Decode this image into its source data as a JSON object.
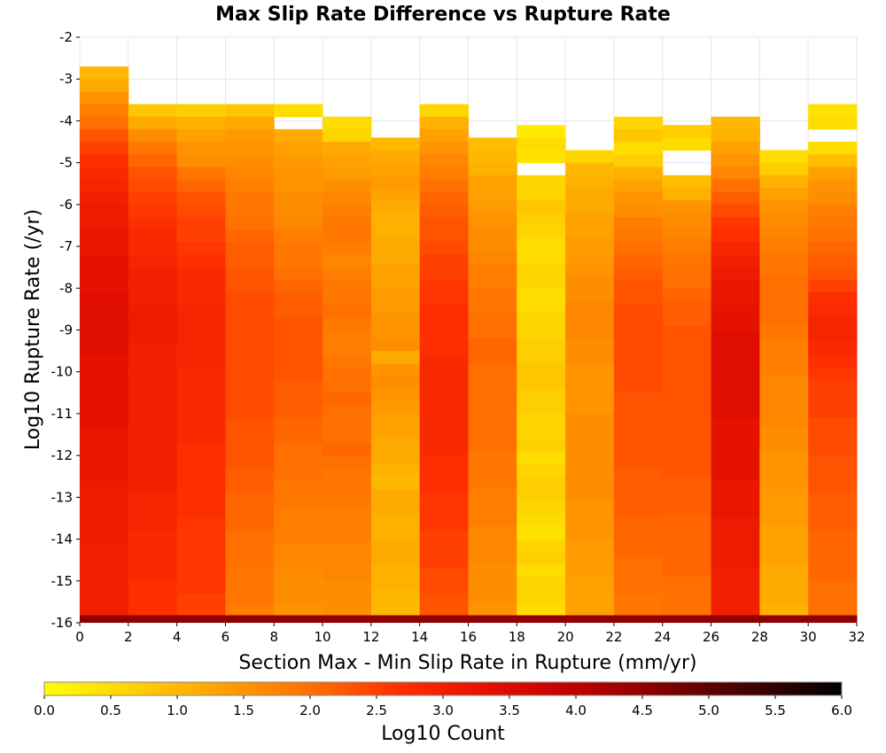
{
  "chart_data": {
    "type": "heatmap",
    "title": "Max Slip Rate Difference vs Rupture Rate",
    "xlabel": "Section Max - Min Slip Rate in Rupture (mm/yr)",
    "ylabel": "Log10 Rupture Rate (/yr)",
    "xlim": [
      0,
      32
    ],
    "ylim": [
      -16,
      -2
    ],
    "x_ticks": [
      "0",
      "2",
      "4",
      "6",
      "8",
      "10",
      "12",
      "14",
      "16",
      "18",
      "20",
      "22",
      "24",
      "26",
      "28",
      "30",
      "32"
    ],
    "y_ticks": [
      "-2",
      "-3",
      "-4",
      "-5",
      "-6",
      "-7",
      "-8",
      "-9",
      "-10",
      "-11",
      "-12",
      "-13",
      "-14",
      "-15",
      "-16"
    ],
    "colorbar": {
      "label": "Log10 Count",
      "range": [
        0,
        6
      ],
      "ticks": [
        "0.0",
        "0.5",
        "1.0",
        "1.5",
        "2.0",
        "2.5",
        "3.0",
        "3.5",
        "4.0",
        "4.5",
        "5.0",
        "5.5",
        "6.0"
      ],
      "colors": [
        "#ffff00",
        "#ffd000",
        "#ffa000",
        "#ff7000",
        "#ff3000",
        "#e41000",
        "#c00000",
        "#800000",
        "#400000",
        "#000000"
      ]
    },
    "x_bin_width": 2,
    "y_bin_height": 0.3,
    "grid": true,
    "note_cells": "values are log10 counts per cell; columns list value pairs from the top of each column [y_top, values...]",
    "columns": [
      {
        "x": 1,
        "y_top": -2.7,
        "bottom_value": 4.5,
        "values": [
          1.0,
          1.2,
          1.5,
          1.8,
          2.0,
          2.3,
          2.5,
          2.7,
          2.8,
          2.9,
          3.0,
          3.1,
          3.1,
          3.2,
          3.2,
          3.3,
          3.3,
          3.3,
          3.4,
          3.4,
          3.4,
          3.4,
          3.4,
          3.3,
          3.3,
          3.3,
          3.3,
          3.3,
          3.3,
          3.2,
          3.2,
          3.2,
          3.2,
          3.1,
          3.1,
          3.1,
          3.1,
          3.1,
          3.0,
          3.0,
          3.0,
          3.0,
          3.0,
          3.0,
          3.0,
          2.9
        ]
      },
      {
        "x": 3,
        "y_top": -3.6,
        "bottom_value": 4.5,
        "values": [
          0.8,
          1.2,
          1.6,
          1.9,
          2.1,
          2.3,
          2.4,
          2.5,
          2.6,
          2.7,
          2.8,
          2.8,
          2.9,
          3.0,
          3.0,
          3.0,
          3.1,
          3.1,
          3.1,
          3.0,
          3.0,
          3.0,
          3.0,
          3.0,
          3.0,
          3.0,
          3.0,
          3.0,
          3.0,
          3.0,
          3.0,
          2.9,
          2.9,
          2.9,
          2.8,
          2.8,
          2.8,
          2.8,
          2.7,
          2.7,
          2.7,
          2.6
        ]
      },
      {
        "x": 5,
        "y_top": -3.6,
        "bottom_value": 4.5,
        "values": [
          0.7,
          1.1,
          1.3,
          1.5,
          1.6,
          1.9,
          2.1,
          2.3,
          2.4,
          2.5,
          2.5,
          2.6,
          2.7,
          2.8,
          2.8,
          2.8,
          2.9,
          2.9,
          2.9,
          2.9,
          2.9,
          2.8,
          2.8,
          2.8,
          2.8,
          2.8,
          2.8,
          2.7,
          2.7,
          2.7,
          2.7,
          2.7,
          2.7,
          2.6,
          2.6,
          2.6,
          2.6,
          2.6,
          2.6,
          2.5,
          2.5,
          2.5
        ]
      },
      {
        "x": 7,
        "y_top": -3.6,
        "bottom_value": 4.5,
        "values": [
          0.8,
          1.2,
          1.4,
          1.5,
          1.6,
          1.7,
          1.8,
          1.9,
          1.9,
          2.0,
          2.1,
          2.2,
          2.2,
          2.3,
          2.3,
          2.4,
          2.4,
          2.4,
          2.4,
          2.4,
          2.4,
          2.4,
          2.4,
          2.4,
          2.4,
          2.3,
          2.3,
          2.3,
          2.3,
          2.2,
          2.2,
          2.1,
          2.1,
          2.1,
          2.0,
          2.0,
          2.0,
          1.9,
          1.9,
          1.9,
          1.8,
          1.8
        ]
      },
      {
        "x": 9,
        "y_top": -3.6,
        "bottom_value": 4.5,
        "values": [
          0.5,
          null,
          1.2,
          1.3,
          1.4,
          1.5,
          1.5,
          1.6,
          1.6,
          1.7,
          1.8,
          1.9,
          1.9,
          2.0,
          2.1,
          2.2,
          2.2,
          2.3,
          2.3,
          2.3,
          2.3,
          2.3,
          2.2,
          2.2,
          2.2,
          2.1,
          2.1,
          2.0,
          2.0,
          2.0,
          1.9,
          1.9,
          1.8,
          1.8,
          1.8,
          1.7,
          1.7,
          1.6,
          1.6,
          1.6,
          1.5,
          1.5
        ]
      },
      {
        "x": 11,
        "y_top": -3.9,
        "bottom_value": 4.5,
        "values": [
          0.5,
          0.6,
          1.2,
          1.3,
          1.4,
          1.6,
          1.7,
          1.8,
          1.9,
          1.9,
          1.8,
          1.7,
          1.8,
          1.9,
          1.9,
          2.0,
          1.9,
          1.8,
          1.8,
          1.9,
          2.0,
          2.0,
          2.1,
          2.0,
          2.0,
          2.0,
          2.1,
          2.0,
          1.9,
          1.9,
          1.9,
          1.8,
          1.8,
          1.8,
          1.7,
          1.7,
          1.7,
          1.6,
          1.6,
          1.6,
          1.5
        ]
      },
      {
        "x": 13,
        "y_top": -4.4,
        "bottom_value": 4.5,
        "values": [
          1.0,
          1.2,
          1.3,
          1.4,
          1.3,
          1.2,
          1.1,
          1.1,
          1.2,
          1.2,
          1.3,
          1.3,
          1.4,
          1.4,
          1.5,
          1.5,
          1.6,
          1.2,
          1.5,
          1.6,
          1.5,
          1.4,
          1.3,
          1.3,
          1.2,
          1.2,
          1.1,
          1.0,
          1.2,
          1.2,
          1.1,
          1.1,
          1.2,
          1.2,
          1.1,
          1.1,
          1.0,
          1.0,
          0.9,
          1.0
        ]
      },
      {
        "x": 15,
        "y_top": -3.6,
        "bottom_value": 4.5,
        "values": [
          0.6,
          1.1,
          1.3,
          1.5,
          1.7,
          1.8,
          2.0,
          2.1,
          2.2,
          2.3,
          2.3,
          2.4,
          2.5,
          2.5,
          2.6,
          2.6,
          2.7,
          2.7,
          2.7,
          2.7,
          2.8,
          2.8,
          2.8,
          2.8,
          2.8,
          2.8,
          2.8,
          2.8,
          2.7,
          2.7,
          2.7,
          2.6,
          2.6,
          2.6,
          2.5,
          2.5,
          2.5,
          2.4,
          2.4,
          2.3,
          2.3,
          2.2
        ]
      },
      {
        "x": 17,
        "y_top": -4.4,
        "bottom_value": 4.5,
        "values": [
          0.9,
          1.0,
          1.1,
          1.3,
          1.3,
          1.4,
          1.5,
          1.6,
          1.6,
          1.7,
          1.8,
          1.8,
          1.9,
          1.9,
          2.0,
          2.0,
          2.1,
          2.1,
          2.0,
          2.0,
          2.0,
          2.0,
          2.0,
          2.0,
          2.0,
          1.9,
          1.9,
          1.9,
          1.8,
          1.8,
          1.8,
          1.7,
          1.7,
          1.7,
          1.6,
          1.6,
          1.6,
          1.5,
          1.5,
          1.2
        ]
      },
      {
        "x": 19,
        "y_top": -4.1,
        "bottom_value": 4.5,
        "values": [
          0.3,
          0.5,
          0.4,
          null,
          0.6,
          0.6,
          0.8,
          0.7,
          0.6,
          0.5,
          0.5,
          0.6,
          0.6,
          0.5,
          0.5,
          0.6,
          0.6,
          0.7,
          0.7,
          0.8,
          0.8,
          0.7,
          0.7,
          0.6,
          0.6,
          0.7,
          0.5,
          0.6,
          0.7,
          0.7,
          0.6,
          0.5,
          0.4,
          0.6,
          0.7,
          0.5,
          0.6,
          0.6,
          0.5,
          0.4,
          0.5
        ]
      },
      {
        "x": 21,
        "y_top": -4.7,
        "bottom_value": 4.5,
        "values": [
          0.6,
          1.0,
          1.1,
          1.2,
          1.2,
          1.3,
          1.3,
          1.4,
          1.4,
          1.5,
          1.6,
          1.6,
          1.7,
          1.7,
          1.7,
          1.6,
          1.6,
          1.5,
          1.5,
          1.5,
          1.5,
          1.6,
          1.6,
          1.6,
          1.6,
          1.6,
          1.6,
          1.6,
          1.5,
          1.5,
          1.5,
          1.4,
          1.4,
          1.4,
          1.3,
          1.3,
          1.3,
          1.2,
          1.1
        ]
      },
      {
        "x": 23,
        "y_top": -3.9,
        "bottom_value": 4.5,
        "values": [
          0.6,
          0.8,
          0.5,
          0.7,
          1.1,
          1.3,
          1.5,
          1.6,
          1.8,
          1.9,
          2.0,
          2.1,
          2.2,
          2.3,
          2.3,
          2.4,
          2.4,
          2.4,
          2.4,
          2.4,
          2.4,
          2.4,
          2.3,
          2.3,
          2.3,
          2.3,
          2.3,
          2.3,
          2.2,
          2.2,
          2.2,
          2.2,
          2.1,
          2.1,
          2.1,
          2.0,
          2.0,
          2.0,
          1.9,
          1.9,
          1.9
        ]
      },
      {
        "x": 25,
        "y_top": -4.1,
        "bottom_value": 4.5,
        "values": [
          0.7,
          0.5,
          null,
          null,
          0.9,
          1.1,
          1.5,
          1.6,
          1.7,
          1.8,
          1.9,
          2.0,
          2.0,
          2.1,
          2.2,
          2.2,
          2.3,
          2.3,
          2.3,
          2.3,
          2.3,
          2.3,
          2.3,
          2.3,
          2.3,
          2.3,
          2.3,
          2.3,
          2.2,
          2.2,
          2.2,
          2.1,
          2.1,
          2.1,
          2.1,
          2.1,
          2.0,
          2.0,
          2.0,
          2.0
        ]
      },
      {
        "x": 27,
        "y_top": -3.9,
        "bottom_value": 4.5,
        "values": [
          1.0,
          1.1,
          1.3,
          1.5,
          1.7,
          2.0,
          2.2,
          2.4,
          2.6,
          2.7,
          2.9,
          3.0,
          3.1,
          3.2,
          3.2,
          3.3,
          3.3,
          3.4,
          3.4,
          3.4,
          3.4,
          3.4,
          3.4,
          3.4,
          3.3,
          3.3,
          3.3,
          3.3,
          3.3,
          3.2,
          3.2,
          3.2,
          3.1,
          3.1,
          3.1,
          3.1,
          3.0,
          3.0,
          3.0,
          3.0,
          3.0
        ]
      },
      {
        "x": 29,
        "y_top": -4.7,
        "bottom_value": 4.5,
        "values": [
          0.5,
          0.7,
          1.1,
          1.3,
          1.5,
          1.6,
          1.7,
          1.8,
          1.9,
          1.9,
          2.0,
          2.0,
          2.0,
          2.0,
          1.9,
          1.8,
          1.8,
          1.8,
          1.7,
          1.7,
          1.7,
          1.7,
          1.6,
          1.6,
          1.5,
          1.5,
          1.5,
          1.4,
          1.4,
          1.4,
          1.3,
          1.3,
          1.3,
          1.2,
          1.2,
          1.2,
          1.1,
          1.0,
          0.9
        ]
      },
      {
        "x": 31,
        "y_top": -3.6,
        "bottom_value": 4.5,
        "values": [
          0.4,
          0.5,
          null,
          0.5,
          0.9,
          1.3,
          1.5,
          1.6,
          1.8,
          1.9,
          2.0,
          2.1,
          2.2,
          2.3,
          2.5,
          2.7,
          2.8,
          2.9,
          2.9,
          2.8,
          2.7,
          2.6,
          2.5,
          2.5,
          2.5,
          2.4,
          2.4,
          2.4,
          2.3,
          2.3,
          2.3,
          2.2,
          2.2,
          2.2,
          2.1,
          2.1,
          2.1,
          2.1,
          2.0,
          2.0,
          2.0,
          2.0
        ]
      }
    ]
  }
}
